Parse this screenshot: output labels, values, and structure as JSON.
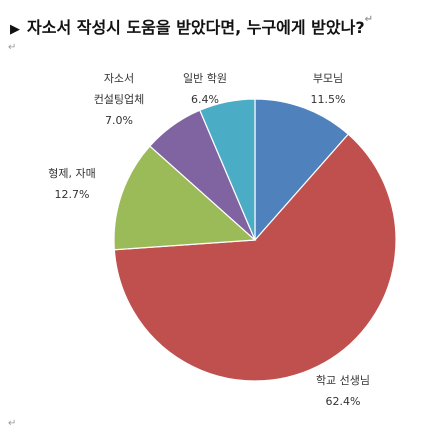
{
  "header": {
    "title": "자소서 작성시 도움을 받았다면, 누구에게 받았나?"
  },
  "chart_data": {
    "type": "pie",
    "title": "자소서 작성시 도움을 받았다면, 누구에게 받았나?",
    "unit": "%",
    "slices": [
      {
        "label": "부모님",
        "value": 11.5,
        "display": "11.5%",
        "color": "#4F81BD"
      },
      {
        "label": "학교 선생님",
        "value": 62.4,
        "display": "62.4%",
        "color": "#C0504D"
      },
      {
        "label": "형제, 자매",
        "value": 12.7,
        "display": "12.7%",
        "color": "#9BBB59"
      },
      {
        "label": "자소서 컨설팅업체",
        "value": 7.0,
        "display": "7.0%",
        "color": "#8064A2"
      },
      {
        "label": "일반 학원",
        "value": 6.4,
        "display": "6.4%",
        "color": "#4BACC6"
      }
    ]
  }
}
